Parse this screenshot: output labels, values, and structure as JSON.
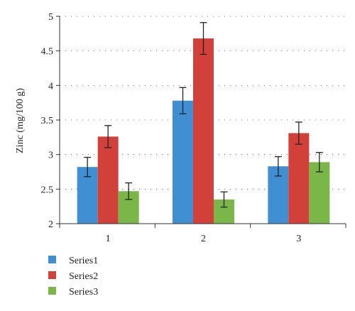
{
  "chart_data": {
    "type": "bar",
    "title": "",
    "xlabel": "",
    "ylabel": "Zinc (mg/100 g)",
    "categories": [
      "1",
      "2",
      "3"
    ],
    "ylim": [
      2,
      5
    ],
    "yticks": [
      "2",
      "2.5",
      "3",
      "3.5",
      "4",
      "4.5",
      "5"
    ],
    "grid": "horizontal dotted",
    "legend_position": "bottom-left",
    "error_bars": true,
    "series": [
      {
        "name": "Series1",
        "color": "#3f8fd2",
        "values": [
          2.82,
          3.78,
          2.83
        ],
        "errors": [
          0.14,
          0.19,
          0.14
        ]
      },
      {
        "name": "Series2",
        "color": "#d2403a",
        "values": [
          3.26,
          4.68,
          3.31
        ],
        "errors": [
          0.16,
          0.23,
          0.16
        ]
      },
      {
        "name": "Series3",
        "color": "#7ab648",
        "values": [
          2.47,
          2.35,
          2.89
        ],
        "errors": [
          0.12,
          0.11,
          0.14
        ]
      }
    ]
  }
}
